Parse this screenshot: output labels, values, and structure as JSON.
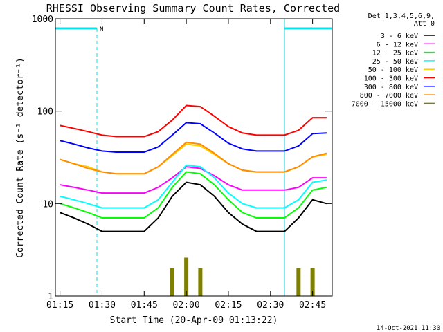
{
  "chart_data": {
    "type": "line",
    "title": "RHESSI Observing Summary Count Rates, Corrected",
    "xlabel": "Start Time (20-Apr-09 01:13:22)",
    "ylabel": "Corrected Count Rate (s⁻¹ detector⁻¹)",
    "yscale": "log",
    "ylim": [
      1,
      1000
    ],
    "xlim": [
      "01:13:22",
      "02:52:00"
    ],
    "x_ticks": [
      "01:15",
      "01:30",
      "01:45",
      "02:00",
      "02:15",
      "02:30",
      "02:45"
    ],
    "y_ticks": [
      "1",
      "10",
      "100",
      "1000"
    ],
    "legend_header": [
      "Det 1,3,4,5,6,9,",
      "Att 0"
    ],
    "legend_position": "right",
    "footer": "14-Oct-2021 11:30",
    "night_intervals": [
      {
        "start": "01:13:22",
        "end": "01:28:10",
        "label": "N"
      },
      {
        "start": "02:35:00",
        "end": "02:52:00",
        "label": ""
      }
    ],
    "x": [
      "01:15",
      "01:20",
      "01:25",
      "01:30",
      "01:35",
      "01:40",
      "01:45",
      "01:50",
      "01:55",
      "02:00",
      "02:05",
      "02:10",
      "02:15",
      "02:20",
      "02:25",
      "02:30",
      "02:35",
      "02:40",
      "02:45",
      "02:50"
    ],
    "series": [
      {
        "name": "3 - 6 keV",
        "color": "#000000",
        "values": [
          8,
          7,
          6,
          5,
          5,
          5,
          5,
          7,
          12,
          17,
          16,
          12,
          8,
          6,
          5,
          5,
          5,
          7,
          11,
          10
        ]
      },
      {
        "name": "6 - 12 keV",
        "color": "#ff00ff",
        "values": [
          16,
          15,
          14,
          13,
          13,
          13,
          13,
          15,
          19,
          25,
          24,
          20,
          16,
          14,
          14,
          14,
          14,
          15,
          19,
          19
        ]
      },
      {
        "name": "12 - 25 keV",
        "color": "#00ff00",
        "values": [
          10,
          9,
          8,
          7,
          7,
          7,
          7,
          9,
          15,
          22,
          21,
          16,
          11,
          8,
          7,
          7,
          7,
          9,
          14,
          15
        ]
      },
      {
        "name": "25 - 50 keV",
        "color": "#00ffff",
        "values": [
          12,
          11,
          10,
          9,
          9,
          9,
          9,
          11,
          17,
          26,
          25,
          19,
          13,
          10,
          9,
          9,
          9,
          11,
          17,
          18
        ]
      },
      {
        "name": "50 - 100 keV",
        "color": "#ffcc00",
        "values": [
          30,
          27,
          25,
          22,
          21,
          21,
          21,
          25,
          33,
          44,
          42,
          34,
          27,
          23,
          22,
          22,
          22,
          25,
          32,
          34
        ]
      },
      {
        "name": "100 - 300 keV",
        "color": "#ff0000",
        "values": [
          70,
          65,
          60,
          55,
          53,
          53,
          53,
          60,
          80,
          115,
          112,
          88,
          68,
          58,
          55,
          55,
          55,
          62,
          85,
          85
        ]
      },
      {
        "name": "300 - 800 keV",
        "color": "#0000ff",
        "values": [
          48,
          44,
          40,
          37,
          36,
          36,
          36,
          41,
          55,
          75,
          73,
          58,
          45,
          39,
          37,
          37,
          37,
          42,
          57,
          58
        ]
      },
      {
        "name": "800 - 7000 keV",
        "color": "#ff8c00",
        "values": [
          30,
          27,
          24,
          22,
          21,
          21,
          21,
          25,
          34,
          46,
          44,
          35,
          27,
          23,
          22,
          22,
          22,
          25,
          32,
          35
        ]
      },
      {
        "name": "7000 - 15000 keV",
        "color": "#808000",
        "values": [
          0,
          0,
          0,
          0,
          0,
          0,
          0,
          0,
          2,
          2.6,
          2,
          0,
          0,
          0,
          0,
          0,
          0,
          2,
          2,
          0
        ]
      }
    ]
  }
}
